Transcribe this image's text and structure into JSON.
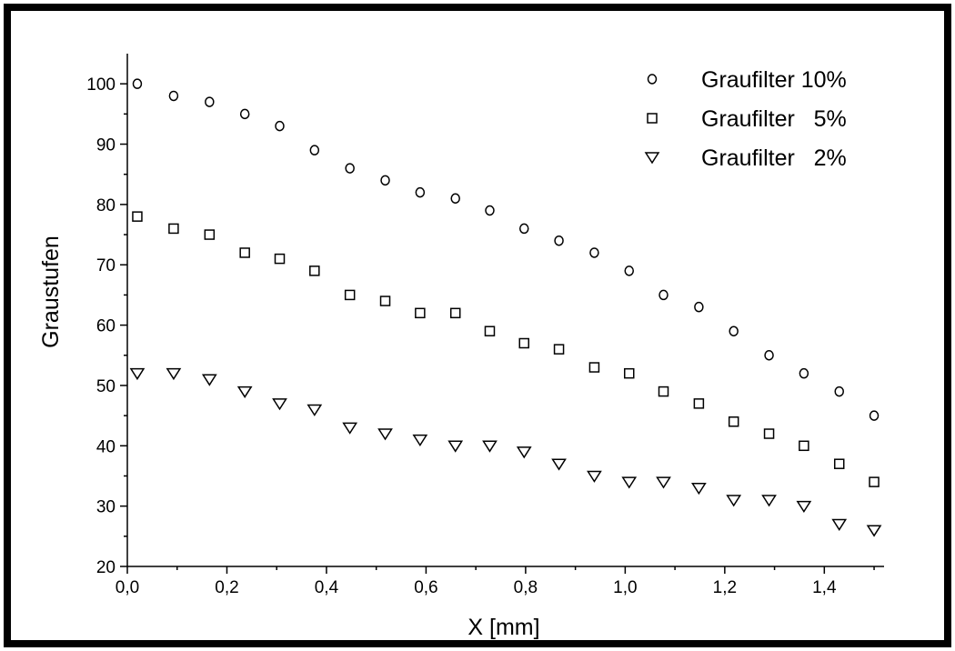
{
  "chart_data": {
    "type": "scatter",
    "title": "",
    "xlabel": "X [mm]",
    "ylabel": "Graustufen",
    "xlim": [
      0.0,
      1.52
    ],
    "ylim": [
      20,
      105
    ],
    "xticks": [
      "0,0",
      "0,2",
      "0,4",
      "0,6",
      "0,8",
      "1,0",
      "1,2",
      "1,4"
    ],
    "yticks": [
      "20",
      "30",
      "40",
      "50",
      "60",
      "70",
      "80",
      "90",
      "100"
    ],
    "grid": false,
    "legend_position": "top-right",
    "x": [
      0.02,
      0.093,
      0.165,
      0.236,
      0.306,
      0.376,
      0.447,
      0.518,
      0.588,
      0.659,
      0.728,
      0.797,
      0.867,
      0.938,
      1.008,
      1.077,
      1.148,
      1.218,
      1.289,
      1.359,
      1.43,
      1.5
    ],
    "series": [
      {
        "name": "Graufilter 10%",
        "marker": "circle",
        "values": [
          100,
          98,
          97,
          95,
          93,
          89,
          86,
          84,
          82,
          81,
          79,
          76,
          74,
          72,
          69,
          65,
          63,
          59,
          55,
          52,
          49,
          45
        ]
      },
      {
        "name": "Graufilter   5%",
        "marker": "square",
        "values": [
          78,
          76,
          75,
          72,
          71,
          69,
          65,
          64,
          62,
          62,
          59,
          57,
          56,
          53,
          52,
          49,
          47,
          44,
          42,
          40,
          37,
          34
        ]
      },
      {
        "name": "Graufilter   2%",
        "marker": "triangle-down",
        "values": [
          52,
          52,
          51,
          49,
          47,
          46,
          43,
          42,
          41,
          40,
          40,
          39,
          37,
          35,
          34,
          34,
          33,
          31,
          31,
          30,
          27,
          26
        ]
      }
    ]
  }
}
